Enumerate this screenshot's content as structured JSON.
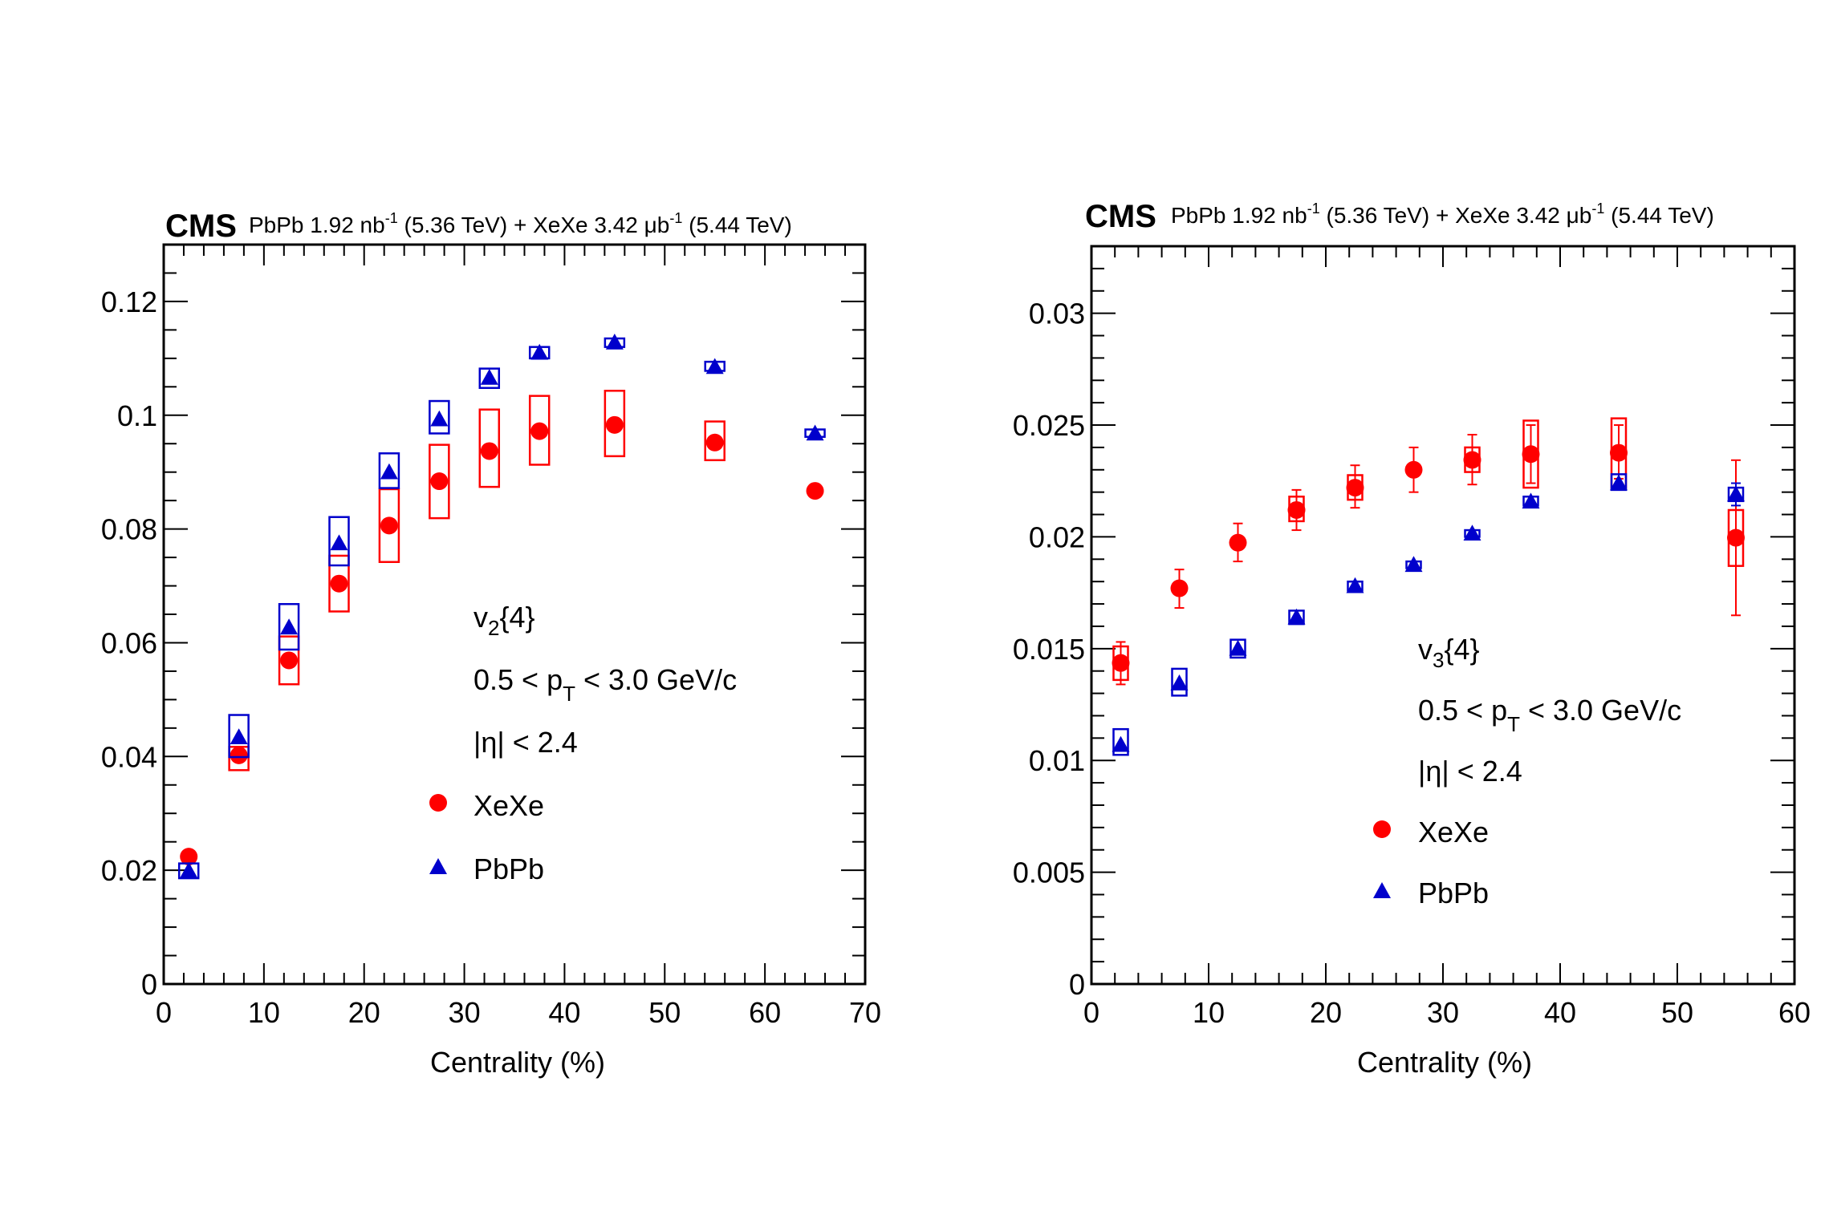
{
  "chart_data": [
    {
      "type": "scatter",
      "id": "v2",
      "experiment_label": "CMS",
      "lumi_label": {
        "pbpb": "PbPb 1.92 nb",
        "pbpb_sup": "-1",
        "pbpb_energy": " (5.36 TeV) + XeXe 3.42 ",
        "xexe_unit": "μb",
        "xexe_sup": "-1",
        "xexe_energy": " (5.44 TeV)"
      },
      "xlabel": "Centrality (%)",
      "ylabel": "",
      "xlim": [
        0,
        70
      ],
      "ylim": [
        0,
        0.13
      ],
      "xticks": [
        0,
        10,
        20,
        30,
        40,
        50,
        60,
        70
      ],
      "xtick_labels": [
        "0",
        "10",
        "20",
        "30",
        "40",
        "50",
        "60",
        "70"
      ],
      "xminor_step": 2,
      "yticks": [
        0,
        0.02,
        0.04,
        0.06,
        0.08,
        0.1,
        0.12
      ],
      "ytick_labels": [
        "0",
        "0.02",
        "0.04",
        "0.06",
        "0.08",
        "0.1",
        "0.12"
      ],
      "yminor_step": 0.005,
      "grid": false,
      "annotations": {
        "observable": "v",
        "observable_sub": "2",
        "observable_suffix": "{4}",
        "pt_prefix": "0.5 < p",
        "pt_sub": "T",
        "pt_suffix": " < 3.0 GeV/c",
        "eta": "|η| < 2.4"
      },
      "legend_position": "center-right",
      "series": [
        {
          "name": "XeXe",
          "marker": "circle",
          "color": "#ff0000",
          "x": [
            2.5,
            7.5,
            12.5,
            17.5,
            22.5,
            27.5,
            32.5,
            37.5,
            45,
            55,
            65
          ],
          "y": [
            0.0224,
            0.0402,
            0.0569,
            0.0704,
            0.0806,
            0.0884,
            0.0937,
            0.0972,
            0.0983,
            0.0952,
            0.0867
          ],
          "stat_err": [
            0,
            0,
            0,
            0,
            0,
            0,
            0,
            0,
            0,
            0,
            0
          ],
          "sys_low": [
            0.0224,
            0.0376,
            0.0527,
            0.0655,
            0.0742,
            0.0819,
            0.0874,
            0.0913,
            0.0928,
            0.0921,
            0.0867
          ],
          "sys_high": [
            0.0224,
            0.0417,
            0.0611,
            0.0753,
            0.087,
            0.0948,
            0.101,
            0.1034,
            0.1043,
            0.0989,
            0.0867
          ]
        },
        {
          "name": "PbPb",
          "marker": "triangle",
          "color": "#0000cc",
          "x": [
            2.5,
            7.5,
            12.5,
            17.5,
            22.5,
            27.5,
            32.5,
            37.5,
            45,
            55,
            65
          ],
          "y": [
            0.0199,
            0.0434,
            0.0627,
            0.0775,
            0.09,
            0.0993,
            0.1066,
            0.111,
            0.1128,
            0.1085,
            0.0968
          ],
          "stat_err": [
            0,
            0,
            0,
            0,
            0,
            0,
            0,
            0,
            0,
            0,
            0
          ],
          "sys_low": [
            0.0186,
            0.0399,
            0.0588,
            0.0736,
            0.0872,
            0.0968,
            0.1048,
            0.11,
            0.112,
            0.1078,
            0.0962
          ],
          "sys_high": [
            0.0212,
            0.0473,
            0.0668,
            0.0821,
            0.0933,
            0.1025,
            0.1082,
            0.112,
            0.1135,
            0.1094,
            0.0975
          ]
        }
      ]
    },
    {
      "type": "scatter",
      "id": "v3",
      "experiment_label": "CMS",
      "lumi_label": {
        "pbpb": "PbPb 1.92 nb",
        "pbpb_sup": "-1",
        "pbpb_energy": " (5.36 TeV) + XeXe 3.42 ",
        "xexe_unit": "μb",
        "xexe_sup": "-1",
        "xexe_energy": " (5.44 TeV)"
      },
      "xlabel": "Centrality (%)",
      "ylabel": "",
      "xlim": [
        0,
        60
      ],
      "ylim": [
        0,
        0.033
      ],
      "xticks": [
        0,
        10,
        20,
        30,
        40,
        50,
        60
      ],
      "xtick_labels": [
        "0",
        "10",
        "20",
        "30",
        "40",
        "50",
        "60"
      ],
      "xminor_step": 2,
      "yticks": [
        0,
        0.005,
        0.01,
        0.015,
        0.02,
        0.025,
        0.03
      ],
      "ytick_labels": [
        "0",
        "0.005",
        "0.01",
        "0.015",
        "0.02",
        "0.025",
        "0.03"
      ],
      "yminor_step": 0.001,
      "grid": false,
      "annotations": {
        "observable": "v",
        "observable_sub": "3",
        "observable_suffix": "{4}",
        "pt_prefix": "0.5 < p",
        "pt_sub": "T",
        "pt_suffix": " < 3.0 GeV/c",
        "eta": "|η| < 2.4"
      },
      "legend_position": "center-right",
      "series": [
        {
          "name": "XeXe",
          "marker": "circle",
          "color": "#ff0000",
          "x": [
            2.5,
            7.5,
            12.5,
            17.5,
            22.5,
            27.5,
            32.5,
            37.5,
            45,
            55
          ],
          "y": [
            0.01436,
            0.0177,
            0.01974,
            0.0212,
            0.0222,
            0.023,
            0.02344,
            0.0237,
            0.02376,
            0.01996
          ],
          "stat_low": [
            0.0134,
            0.01682,
            0.0189,
            0.0203,
            0.0213,
            0.022,
            0.02234,
            0.0224,
            0.0226,
            0.01649
          ],
          "stat_high": [
            0.0153,
            0.01854,
            0.0206,
            0.0221,
            0.0232,
            0.024,
            0.02457,
            0.025,
            0.025,
            0.02343
          ],
          "sys_low": [
            0.0136,
            0.0177,
            0.01974,
            0.0207,
            0.02166,
            0.023,
            0.0229,
            0.0222,
            0.0222,
            0.0187
          ],
          "sys_high": [
            0.0151,
            0.0177,
            0.01974,
            0.0218,
            0.02276,
            0.023,
            0.024,
            0.0252,
            0.0253,
            0.0212
          ]
        },
        {
          "name": "PbPb",
          "marker": "triangle",
          "color": "#0000cc",
          "x": [
            2.5,
            7.5,
            12.5,
            17.5,
            22.5,
            27.5,
            32.5,
            37.5,
            45,
            55
          ],
          "y": [
            0.0107,
            0.01345,
            0.015,
            0.0164,
            0.0178,
            0.01875,
            0.02015,
            0.02158,
            0.0224,
            0.0219
          ],
          "stat_low": [
            0.0107,
            0.01345,
            0.015,
            0.0164,
            0.0178,
            0.01875,
            0.02015,
            0.02158,
            0.0224,
            0.0214
          ],
          "stat_high": [
            0.0107,
            0.01345,
            0.015,
            0.0164,
            0.0178,
            0.01875,
            0.02015,
            0.02158,
            0.0224,
            0.0224
          ],
          "sys_low": [
            0.01025,
            0.0129,
            0.0146,
            0.0161,
            0.0176,
            0.0186,
            0.02,
            0.0214,
            0.0221,
            0.0216
          ],
          "sys_high": [
            0.0114,
            0.0141,
            0.0154,
            0.0167,
            0.018,
            0.0189,
            0.0203,
            0.0218,
            0.0228,
            0.0222
          ]
        }
      ]
    }
  ]
}
